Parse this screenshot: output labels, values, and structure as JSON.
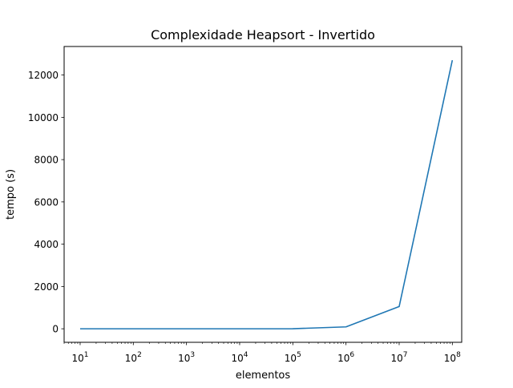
{
  "chart_data": {
    "type": "line",
    "title": "Complexidade Heapsort - Invertido",
    "xlabel": "elementos",
    "ylabel": "tempo (s)",
    "xscale": "log",
    "xlim": [
      5,
      150000000
    ],
    "ylim": [
      -640,
      13350
    ],
    "grid": false,
    "x_ticks": [
      {
        "value": 10,
        "base": "10",
        "exp": "1"
      },
      {
        "value": 100,
        "base": "10",
        "exp": "2"
      },
      {
        "value": 1000,
        "base": "10",
        "exp": "3"
      },
      {
        "value": 10000,
        "base": "10",
        "exp": "4"
      },
      {
        "value": 100000,
        "base": "10",
        "exp": "5"
      },
      {
        "value": 1000000,
        "base": "10",
        "exp": "6"
      },
      {
        "value": 10000000,
        "base": "10",
        "exp": "7"
      },
      {
        "value": 100000000,
        "base": "10",
        "exp": "8"
      }
    ],
    "y_ticks": [
      {
        "value": 0,
        "label": "0"
      },
      {
        "value": 2000,
        "label": "2000"
      },
      {
        "value": 4000,
        "label": "4000"
      },
      {
        "value": 6000,
        "label": "6000"
      },
      {
        "value": 8000,
        "label": "8000"
      },
      {
        "value": 10000,
        "label": "10000"
      },
      {
        "value": 12000,
        "label": "12000"
      }
    ],
    "series": [
      {
        "color": "#1f77b4",
        "x": [
          10,
          100,
          1000,
          10000,
          100000,
          1000000,
          10000000,
          100000000
        ],
        "y": [
          0,
          0,
          0,
          0,
          3,
          90,
          1050,
          12700
        ]
      }
    ]
  }
}
